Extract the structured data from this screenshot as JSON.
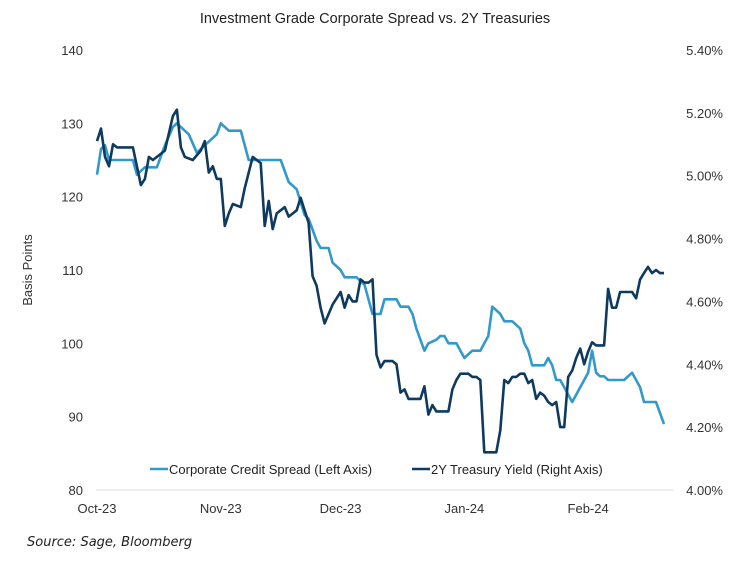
{
  "chart_data": {
    "type": "line",
    "title": "Investment Grade Corporate Spread vs. 2Y Treasuries",
    "ylabel": "Basis Points",
    "ylabel_right": "",
    "xlabel": "",
    "x_ticks": [
      "Oct-23",
      "Nov-23",
      "Dec-23",
      "Jan-24",
      "Feb-24"
    ],
    "x_range": [
      0,
      144
    ],
    "x_tick_positions": [
      0,
      31,
      61,
      92,
      123
    ],
    "ylim_left": [
      80,
      140
    ],
    "y_ticks_left": [
      "80",
      "90",
      "100",
      "110",
      "120",
      "130",
      "140"
    ],
    "y_tick_values_left": [
      80,
      90,
      100,
      110,
      120,
      130,
      140
    ],
    "ylim_right": [
      4.0,
      5.4
    ],
    "y_ticks_right": [
      "4.00%",
      "4.20%",
      "4.40%",
      "4.60%",
      "4.80%",
      "5.00%",
      "5.20%",
      "5.40%"
    ],
    "y_tick_values_right": [
      4.0,
      4.2,
      4.4,
      4.6,
      4.8,
      5.0,
      5.2,
      5.4
    ],
    "grid": false,
    "legend_position": "bottom-inside",
    "series": [
      {
        "name": "Corporate Credit Spread (Left Axis)",
        "axis": "left",
        "color": "#3399cc",
        "x": [
          0,
          1,
          2,
          3,
          5,
          7,
          9,
          10,
          12,
          13,
          14,
          15,
          17,
          19,
          20,
          22,
          23,
          25,
          27,
          30,
          31,
          33,
          36,
          38,
          40,
          42,
          43,
          46,
          48,
          50,
          52,
          53,
          55,
          56,
          58,
          59,
          61,
          62,
          63,
          65,
          67,
          69,
          70,
          71,
          72,
          74,
          75,
          76,
          77,
          78,
          79,
          80,
          82,
          83,
          85,
          86,
          87,
          88,
          89,
          90,
          91,
          92,
          94,
          95,
          96,
          97,
          98,
          99,
          101,
          102,
          103,
          104,
          106,
          107,
          108,
          109,
          110,
          111,
          112,
          113,
          114,
          115,
          116,
          117,
          118,
          119,
          120,
          121,
          122,
          123,
          124,
          125,
          126,
          127,
          128,
          129,
          130,
          131,
          132,
          133,
          134,
          135,
          136,
          137,
          138,
          139,
          140,
          141,
          142
        ],
        "values": [
          123,
          126.5,
          127,
          125,
          125,
          125,
          125,
          123,
          124,
          124,
          124,
          124,
          127,
          129.5,
          130,
          129,
          128.5,
          126,
          127,
          128.5,
          130,
          129,
          129,
          125,
          125,
          125,
          125,
          125,
          122,
          121,
          117.5,
          117,
          114,
          113,
          113,
          111,
          110,
          109,
          109,
          109,
          108,
          104,
          104,
          104,
          106,
          106,
          106,
          105,
          105,
          105,
          104,
          102,
          99,
          100,
          100.5,
          101,
          101,
          100,
          100,
          100,
          99,
          98,
          99,
          99,
          99,
          100,
          101,
          105,
          104,
          103,
          103,
          103,
          102,
          100,
          99,
          97,
          97,
          97,
          97,
          98,
          97,
          95,
          95,
          94,
          93,
          92,
          93,
          94,
          95,
          96,
          99,
          96,
          95.5,
          95.5,
          95,
          95,
          95,
          95,
          95,
          95.5,
          96,
          95,
          94,
          92,
          92,
          92,
          92,
          90.5,
          89
        ],
        "display": "Corporate Credit Spread (Left Axis)"
      },
      {
        "name": "2Y Treasury Yield (Right Axis)",
        "axis": "right",
        "color": "#0f3a5f",
        "x": [
          0,
          1,
          2,
          3,
          4,
          5,
          7,
          9,
          11,
          12,
          13,
          14,
          15,
          17,
          19,
          20,
          21,
          22,
          24,
          26,
          27,
          28,
          29,
          30,
          31,
          32,
          33,
          34,
          36,
          37,
          39,
          40,
          41,
          42,
          43,
          44,
          45,
          46,
          47,
          48,
          50,
          51,
          52,
          53,
          54,
          55,
          56,
          57,
          58,
          59,
          61,
          62,
          63,
          64,
          65,
          66,
          67,
          68,
          69,
          70,
          71,
          72,
          73,
          74,
          75,
          76,
          77,
          78,
          79,
          80,
          81,
          82,
          83,
          84,
          85,
          86,
          87,
          88,
          89,
          90,
          91,
          92,
          93,
          94,
          95,
          96,
          97,
          98,
          99,
          100,
          101,
          102,
          103,
          104,
          105,
          106,
          107,
          108,
          109,
          110,
          111,
          112,
          113,
          114,
          115,
          116,
          117,
          118,
          119,
          120,
          121,
          122,
          123,
          124,
          125,
          126,
          127,
          128,
          129,
          130,
          131,
          132,
          133,
          134,
          135,
          136,
          137,
          138,
          139,
          140,
          141,
          142
        ],
        "values": [
          5.11,
          5.15,
          5.06,
          5.03,
          5.1,
          5.09,
          5.09,
          5.09,
          4.97,
          4.99,
          5.06,
          5.05,
          5.06,
          5.08,
          5.19,
          5.21,
          5.09,
          5.06,
          5.05,
          5.08,
          5.11,
          5.01,
          5.03,
          4.99,
          4.99,
          4.84,
          4.88,
          4.91,
          4.9,
          4.96,
          5.06,
          5.05,
          5.04,
          4.84,
          4.92,
          4.83,
          4.88,
          4.89,
          4.9,
          4.87,
          4.89,
          4.93,
          4.89,
          4.85,
          4.68,
          4.65,
          4.58,
          4.53,
          4.56,
          4.59,
          4.63,
          4.58,
          4.62,
          4.6,
          4.6,
          4.67,
          4.66,
          4.66,
          4.67,
          4.43,
          4.39,
          4.41,
          4.41,
          4.41,
          4.4,
          4.31,
          4.32,
          4.29,
          4.29,
          4.29,
          4.29,
          4.33,
          4.24,
          4.27,
          4.25,
          4.25,
          4.25,
          4.25,
          4.32,
          4.35,
          4.37,
          4.37,
          4.37,
          4.36,
          4.36,
          4.35,
          4.12,
          4.12,
          4.12,
          4.12,
          4.19,
          4.35,
          4.34,
          4.36,
          4.36,
          4.37,
          4.37,
          4.34,
          4.35,
          4.29,
          4.31,
          4.3,
          4.28,
          4.27,
          4.28,
          4.2,
          4.2,
          4.36,
          4.38,
          4.42,
          4.45,
          4.4,
          4.44,
          4.47,
          4.46,
          4.46,
          4.46,
          4.64,
          4.58,
          4.58,
          4.63,
          4.63,
          4.63,
          4.63,
          4.61,
          4.67,
          4.69,
          4.71,
          4.69,
          4.7,
          4.69,
          4.69
        ],
        "display": "2Y Treasury Yield (Right Axis)"
      }
    ]
  },
  "source": "Source: Sage, Bloomberg"
}
